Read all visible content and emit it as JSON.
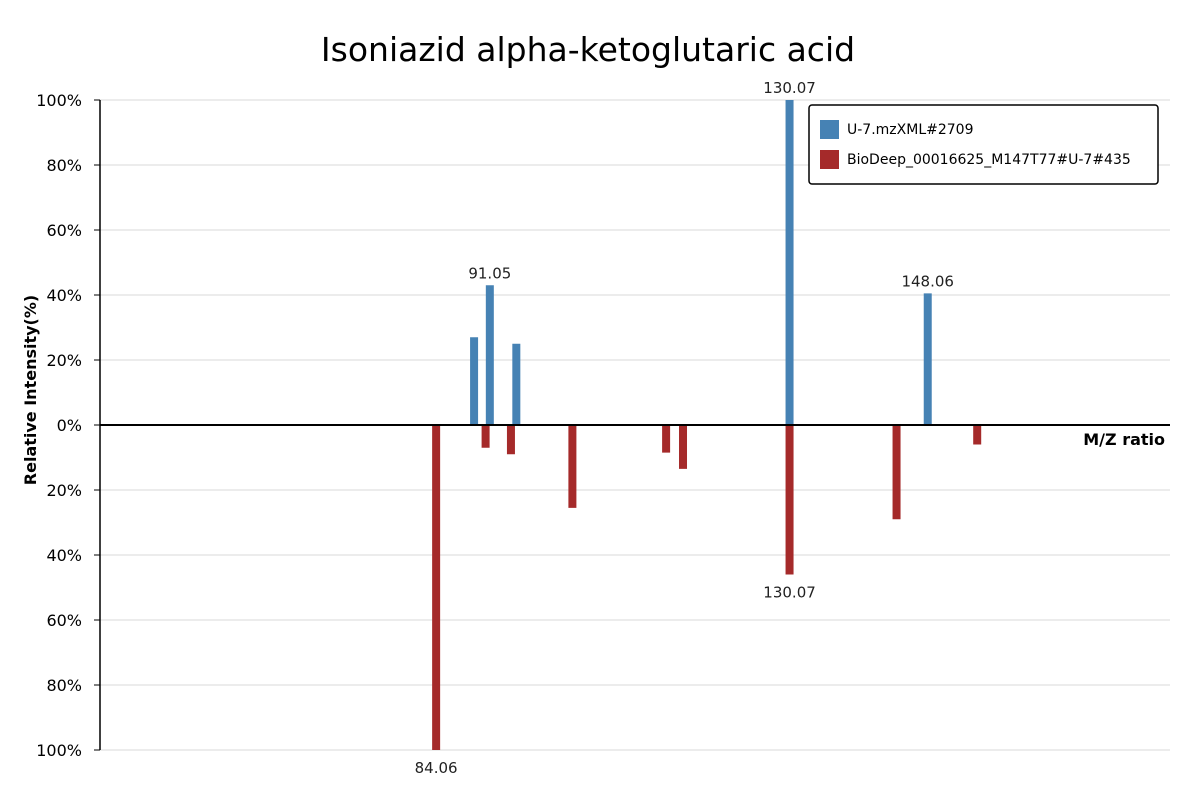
{
  "chart_data": {
    "type": "bar",
    "title": "Isoniazid alpha-ketoglutaric acid",
    "xlabel": "M/Z ratio",
    "ylabel": "Relative Intensity(%)",
    "ylim": [
      -100,
      100
    ],
    "xlim": [
      40.3,
      179.6
    ],
    "grid": true,
    "legend_position": "top-right",
    "y_ticks": [
      "100%",
      "80%",
      "60%",
      "40%",
      "20%",
      "0%",
      "20%",
      "40%",
      "60%",
      "80%",
      "100%"
    ],
    "series": [
      {
        "name": "U-7.mzXML#2709",
        "color": "#4682b4",
        "direction": "up",
        "points": [
          {
            "mz": 89.0,
            "intensity": 27
          },
          {
            "mz": 91.05,
            "intensity": 43,
            "label": "91.05"
          },
          {
            "mz": 94.5,
            "intensity": 25
          },
          {
            "mz": 130.07,
            "intensity": 100,
            "label": "130.07"
          },
          {
            "mz": 148.06,
            "intensity": 40.5,
            "label": "148.06"
          }
        ]
      },
      {
        "name": "BioDeep_00016625_M147T77#U-7#435",
        "color": "#a52a2a",
        "direction": "down",
        "points": [
          {
            "mz": 84.06,
            "intensity": 100,
            "label": "84.06"
          },
          {
            "mz": 90.5,
            "intensity": 7
          },
          {
            "mz": 93.8,
            "intensity": 9
          },
          {
            "mz": 101.8,
            "intensity": 25.5
          },
          {
            "mz": 114.0,
            "intensity": 8.5
          },
          {
            "mz": 130.07,
            "intensity": 46,
            "label": "130.07"
          },
          {
            "mz": 116.2,
            "intensity": 13.5
          },
          {
            "mz": 144.0,
            "intensity": 29
          },
          {
            "mz": 154.5,
            "intensity": 6
          }
        ]
      }
    ]
  }
}
